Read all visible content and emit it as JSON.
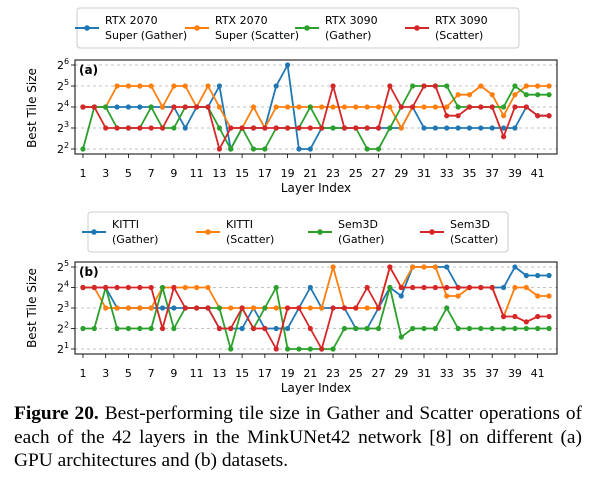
{
  "chart_data": [
    {
      "type": "line",
      "panel_label": "(a)",
      "xlabel": "Layer Index",
      "ylabel": "Best Tile Size",
      "x": [
        1,
        2,
        3,
        4,
        5,
        6,
        7,
        8,
        9,
        10,
        11,
        12,
        13,
        14,
        15,
        16,
        17,
        18,
        19,
        20,
        21,
        22,
        23,
        24,
        25,
        26,
        27,
        28,
        29,
        30,
        31,
        32,
        33,
        34,
        35,
        36,
        37,
        38,
        39,
        40,
        41,
        42
      ],
      "x_ticks": [
        1,
        3,
        5,
        7,
        9,
        11,
        13,
        15,
        17,
        19,
        21,
        23,
        25,
        27,
        29,
        31,
        33,
        35,
        37,
        39,
        41
      ],
      "y_scale": "log2",
      "y_ticks": [
        {
          "value": 4,
          "base": "2",
          "exp": "2"
        },
        {
          "value": 8,
          "base": "2",
          "exp": "3"
        },
        {
          "value": 16,
          "base": "2",
          "exp": "4"
        },
        {
          "value": 32,
          "base": "2",
          "exp": "5"
        },
        {
          "value": 64,
          "base": "2",
          "exp": "6"
        }
      ],
      "ylim": [
        4,
        64
      ],
      "legend_position": "top-center",
      "series": [
        {
          "name": "RTX 2070 Super (Gather)",
          "name_lines": [
            "RTX 2070",
            "Super (Gather)"
          ],
          "color": "#1f77b4",
          "values": [
            16,
            16,
            16,
            16,
            16,
            16,
            16,
            16,
            16,
            8,
            16,
            16,
            32,
            4,
            8,
            8,
            8,
            32,
            64,
            4,
            4,
            8,
            8,
            8,
            8,
            8,
            8,
            8,
            8,
            16,
            8,
            8,
            8,
            8,
            8,
            8,
            8,
            8,
            8,
            16,
            12,
            12
          ]
        },
        {
          "name": "RTX 2070 Super (Scatter)",
          "name_lines": [
            "RTX 2070",
            "Super (Scatter)"
          ],
          "color": "#ff7f0e",
          "values": [
            16,
            16,
            16,
            32,
            32,
            32,
            32,
            16,
            32,
            32,
            16,
            32,
            16,
            8,
            8,
            16,
            8,
            16,
            16,
            16,
            16,
            16,
            16,
            16,
            16,
            16,
            16,
            16,
            8,
            16,
            16,
            16,
            16,
            24,
            24,
            32,
            24,
            12,
            24,
            32,
            32,
            32
          ]
        },
        {
          "name": "RTX 3090 (Gather)",
          "name_lines": [
            "RTX 3090",
            "(Gather)"
          ],
          "color": "#2ca02c",
          "values": [
            4,
            16,
            16,
            8,
            8,
            8,
            16,
            8,
            8,
            16,
            16,
            16,
            8,
            4,
            8,
            4,
            4,
            8,
            8,
            8,
            16,
            8,
            8,
            8,
            8,
            4,
            4,
            8,
            16,
            32,
            32,
            32,
            32,
            16,
            16,
            16,
            16,
            16,
            32,
            24,
            24,
            24
          ]
        },
        {
          "name": "RTX 3090 (Scatter)",
          "name_lines": [
            "RTX 3090",
            "(Scatter)"
          ],
          "color": "#d62728",
          "values": [
            16,
            16,
            8,
            8,
            8,
            8,
            8,
            8,
            16,
            16,
            16,
            16,
            4,
            8,
            8,
            8,
            8,
            8,
            8,
            8,
            8,
            8,
            32,
            8,
            8,
            8,
            8,
            32,
            16,
            16,
            32,
            32,
            12,
            12,
            16,
            16,
            16,
            6,
            16,
            16,
            12,
            12
          ]
        }
      ]
    },
    {
      "type": "line",
      "panel_label": "(b)",
      "xlabel": "Layer Index",
      "ylabel": "Best Tile Size",
      "x": [
        1,
        2,
        3,
        4,
        5,
        6,
        7,
        8,
        9,
        10,
        11,
        12,
        13,
        14,
        15,
        16,
        17,
        18,
        19,
        20,
        21,
        22,
        23,
        24,
        25,
        26,
        27,
        28,
        29,
        30,
        31,
        32,
        33,
        34,
        35,
        36,
        37,
        38,
        39,
        40,
        41,
        42
      ],
      "x_ticks": [
        1,
        3,
        5,
        7,
        9,
        11,
        13,
        15,
        17,
        19,
        21,
        23,
        25,
        27,
        29,
        31,
        33,
        35,
        37,
        39,
        41
      ],
      "y_scale": "log2",
      "y_ticks": [
        {
          "value": 2,
          "base": "2",
          "exp": "1"
        },
        {
          "value": 4,
          "base": "2",
          "exp": "2"
        },
        {
          "value": 8,
          "base": "2",
          "exp": "3"
        },
        {
          "value": 16,
          "base": "2",
          "exp": "4"
        },
        {
          "value": 32,
          "base": "2",
          "exp": "5"
        }
      ],
      "ylim": [
        2,
        32
      ],
      "legend_position": "top-center",
      "series": [
        {
          "name": "KITTI (Gather)",
          "name_lines": [
            "KITTI",
            "(Gather)"
          ],
          "color": "#1f77b4",
          "values": [
            16,
            16,
            16,
            8,
            8,
            8,
            8,
            8,
            8,
            8,
            8,
            8,
            4,
            4,
            4,
            8,
            4,
            4,
            4,
            8,
            16,
            8,
            8,
            8,
            4,
            4,
            8,
            16,
            12,
            32,
            32,
            32,
            32,
            16,
            16,
            16,
            16,
            16,
            32,
            24,
            24,
            24
          ]
        },
        {
          "name": "KITTI (Scatter)",
          "name_lines": [
            "KITTI",
            "(Scatter)"
          ],
          "color": "#ff7f0e",
          "values": [
            16,
            16,
            8,
            8,
            8,
            8,
            8,
            16,
            16,
            16,
            16,
            16,
            8,
            8,
            8,
            8,
            8,
            8,
            8,
            8,
            8,
            8,
            32,
            8,
            8,
            8,
            8,
            32,
            16,
            32,
            32,
            32,
            12,
            12,
            16,
            16,
            16,
            6,
            16,
            16,
            12,
            12
          ]
        },
        {
          "name": "Sem3D (Gather)",
          "name_lines": [
            "Sem3D",
            "(Gather)"
          ],
          "color": "#2ca02c",
          "values": [
            4,
            4,
            16,
            4,
            4,
            4,
            4,
            16,
            4,
            8,
            8,
            8,
            8,
            2,
            8,
            4,
            8,
            16,
            2,
            2,
            2,
            2,
            2,
            4,
            4,
            4,
            4,
            16,
            3,
            4,
            4,
            4,
            8,
            4,
            4,
            4,
            4,
            4,
            4,
            4,
            4,
            4
          ]
        },
        {
          "name": "Sem3D (Scatter)",
          "name_lines": [
            "Sem3D",
            "(Scatter)"
          ],
          "color": "#d62728",
          "values": [
            16,
            16,
            16,
            16,
            16,
            16,
            16,
            4,
            16,
            8,
            8,
            8,
            4,
            4,
            8,
            4,
            4,
            2,
            8,
            8,
            4,
            2,
            8,
            8,
            8,
            16,
            8,
            32,
            16,
            16,
            16,
            16,
            16,
            16,
            16,
            16,
            16,
            6,
            6,
            5,
            6,
            6
          ]
        }
      ]
    }
  ],
  "caption": {
    "figure_label": "Figure 20.",
    "text": "Best-performing tile size in Gather and Scatter operations of each of the 42 layers in the MinkUNet42 network [8] on different (a) GPU architectures and (b) datasets."
  }
}
